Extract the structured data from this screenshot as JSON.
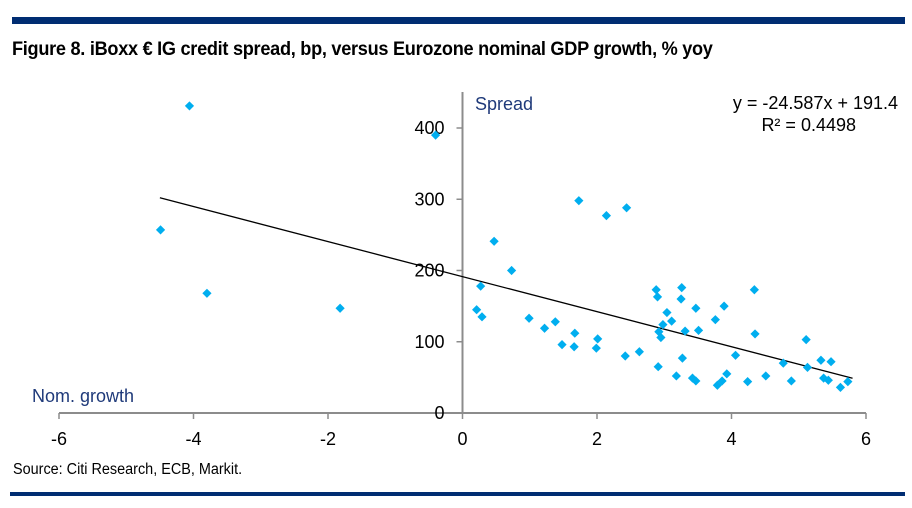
{
  "header": {
    "title": "Figure 8. iBoxx € IG credit spread, bp, versus Eurozone nominal GDP growth, % yoy"
  },
  "footer": {
    "source": "Source: Citi Research, ECB, Markit."
  },
  "colors": {
    "rule": "#002d72",
    "marker": "#00aeef",
    "trendline": "#000000",
    "axis": "#8c8c8c",
    "axis_title": "#1f3a7a"
  },
  "chart_data": {
    "type": "scatter",
    "title": "Figure 8. iBoxx € IG credit spread, bp, versus Eurozone nominal GDP growth, % yoy",
    "xlabel": "Nom. growth",
    "ylabel": "Spread",
    "xlim": [
      -6,
      6
    ],
    "ylim": [
      0,
      400
    ],
    "x_ticks": [
      -6,
      -4,
      -2,
      0,
      2,
      4,
      6
    ],
    "y_ticks": [
      0,
      100,
      200,
      300,
      400
    ],
    "x_tick_labels": [
      "-6",
      "-4",
      "-2",
      "0",
      "2",
      "4",
      "6"
    ],
    "y_tick_labels": [
      "0",
      "100",
      "200",
      "300",
      "400"
    ],
    "grid": false,
    "legend": "none",
    "trendline": {
      "slope": -24.587,
      "intercept": 191.4,
      "x_range": [
        -4.5,
        5.8
      ],
      "equation_label": "y = -24.587x + 191.4",
      "r2_label": "R² = 0.4498",
      "annotation_position": "top-right"
    },
    "points": [
      {
        "x": -4.06,
        "y": 431
      },
      {
        "x": -4.49,
        "y": 257
      },
      {
        "x": -3.8,
        "y": 168
      },
      {
        "x": -1.82,
        "y": 147
      },
      {
        "x": -0.4,
        "y": 390
      },
      {
        "x": 0.21,
        "y": 145
      },
      {
        "x": 0.27,
        "y": 178
      },
      {
        "x": 0.29,
        "y": 135
      },
      {
        "x": 0.47,
        "y": 241
      },
      {
        "x": 0.73,
        "y": 200
      },
      {
        "x": 0.99,
        "y": 133
      },
      {
        "x": 1.22,
        "y": 119
      },
      {
        "x": 1.38,
        "y": 128
      },
      {
        "x": 1.48,
        "y": 96
      },
      {
        "x": 1.66,
        "y": 93
      },
      {
        "x": 1.67,
        "y": 112
      },
      {
        "x": 1.73,
        "y": 298
      },
      {
        "x": 1.99,
        "y": 91
      },
      {
        "x": 2.01,
        "y": 104
      },
      {
        "x": 2.14,
        "y": 277
      },
      {
        "x": 2.42,
        "y": 80
      },
      {
        "x": 2.44,
        "y": 288
      },
      {
        "x": 2.63,
        "y": 86
      },
      {
        "x": 2.88,
        "y": 173
      },
      {
        "x": 2.9,
        "y": 163
      },
      {
        "x": 2.91,
        "y": 65
      },
      {
        "x": 2.92,
        "y": 114
      },
      {
        "x": 2.95,
        "y": 106
      },
      {
        "x": 2.98,
        "y": 124
      },
      {
        "x": 3.04,
        "y": 141
      },
      {
        "x": 3.11,
        "y": 129
      },
      {
        "x": 3.18,
        "y": 52
      },
      {
        "x": 3.25,
        "y": 160
      },
      {
        "x": 3.26,
        "y": 176
      },
      {
        "x": 3.27,
        "y": 77
      },
      {
        "x": 3.31,
        "y": 115
      },
      {
        "x": 3.42,
        "y": 49
      },
      {
        "x": 3.47,
        "y": 147
      },
      {
        "x": 3.47,
        "y": 45
      },
      {
        "x": 3.51,
        "y": 116
      },
      {
        "x": 3.76,
        "y": 131
      },
      {
        "x": 3.79,
        "y": 39
      },
      {
        "x": 3.86,
        "y": 45
      },
      {
        "x": 3.89,
        "y": 150
      },
      {
        "x": 3.93,
        "y": 55
      },
      {
        "x": 4.06,
        "y": 81
      },
      {
        "x": 4.24,
        "y": 44
      },
      {
        "x": 4.34,
        "y": 173
      },
      {
        "x": 4.35,
        "y": 111
      },
      {
        "x": 4.51,
        "y": 52
      },
      {
        "x": 4.77,
        "y": 70
      },
      {
        "x": 4.89,
        "y": 45
      },
      {
        "x": 5.11,
        "y": 103
      },
      {
        "x": 5.13,
        "y": 64
      },
      {
        "x": 5.33,
        "y": 74
      },
      {
        "x": 5.37,
        "y": 49
      },
      {
        "x": 5.44,
        "y": 46
      },
      {
        "x": 5.48,
        "y": 72
      },
      {
        "x": 5.62,
        "y": 36
      },
      {
        "x": 5.73,
        "y": 44
      }
    ]
  }
}
